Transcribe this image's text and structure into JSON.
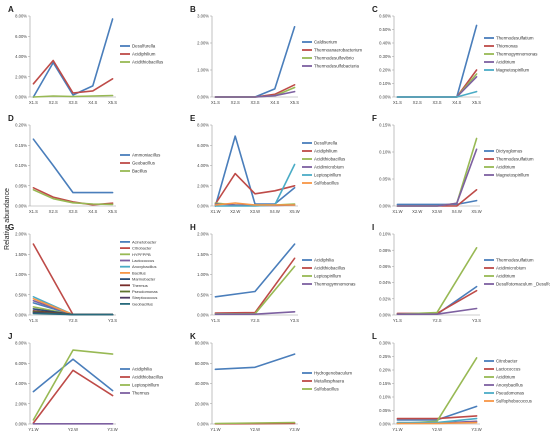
{
  "figure": {
    "ylabel": "Relative abundance"
  },
  "chart_data": [
    {
      "id": "A",
      "type": "line",
      "x": [
        "X1.S",
        "X2.S",
        "X3.S",
        "X4.S",
        "X5.S"
      ],
      "ylim": [
        0,
        8
      ],
      "yticks": [
        "0.00%",
        "2.00%",
        "4.00%",
        "6.00%",
        "8.00%"
      ],
      "series": [
        {
          "name": "Desulfurella",
          "color": "#4a7ebb",
          "values": [
            0.0,
            3.4,
            0.2,
            1.1,
            7.7
          ]
        },
        {
          "name": "Acidiphilium",
          "color": "#be4b48",
          "values": [
            1.3,
            3.6,
            0.4,
            0.6,
            1.8
          ]
        },
        {
          "name": "Acidithiobacillus",
          "color": "#98b954",
          "values": [
            0.0,
            0.1,
            0.05,
            0.1,
            0.15
          ]
        }
      ]
    },
    {
      "id": "B",
      "type": "line",
      "x": [
        "X1.S",
        "X2.S",
        "X3.S",
        "X4.S",
        "X5.S"
      ],
      "ylim": [
        0,
        3
      ],
      "yticks": [
        "0.00%",
        "1.00%",
        "2.00%",
        "3.00%"
      ],
      "series": [
        {
          "name": "Caldiserium",
          "color": "#4a7ebb",
          "values": [
            0,
            0,
            0,
            0.3,
            2.6
          ]
        },
        {
          "name": "Thermoanaerobacterium",
          "color": "#be4b48",
          "values": [
            0,
            0,
            0,
            0.1,
            0.45
          ]
        },
        {
          "name": "Thermodesulfovibrio",
          "color": "#98b954",
          "values": [
            0,
            0,
            0,
            0.05,
            0.35
          ]
        },
        {
          "name": "Thermodesulfobacteria",
          "color": "#7d60a0",
          "values": [
            0,
            0,
            0,
            0.05,
            0.2
          ]
        }
      ]
    },
    {
      "id": "C",
      "type": "line",
      "x": [
        "X1.S",
        "X2.S",
        "X3.S",
        "X4.S",
        "X5.S"
      ],
      "ylim": [
        0,
        0.6
      ],
      "yticks": [
        "0.00%",
        "0.10%",
        "0.20%",
        "0.30%",
        "0.40%",
        "0.50%",
        "0.60%"
      ],
      "series": [
        {
          "name": "Thermodesulfatium",
          "color": "#4a7ebb",
          "values": [
            0,
            0,
            0,
            0,
            0.53
          ]
        },
        {
          "name": "Thiomonas",
          "color": "#be4b48",
          "values": [
            0,
            0,
            0,
            0,
            0.2
          ]
        },
        {
          "name": "Thermogymnomonas",
          "color": "#98b954",
          "values": [
            0,
            0,
            0,
            0,
            0.17
          ]
        },
        {
          "name": "Aciditrium",
          "color": "#7d60a0",
          "values": [
            0,
            0,
            0,
            0,
            0.15
          ]
        },
        {
          "name": "Magnetospirillum",
          "color": "#4bacc6",
          "values": [
            0,
            0,
            0,
            0,
            0.04
          ]
        }
      ]
    },
    {
      "id": "D",
      "type": "line",
      "x": [
        "X1.S",
        "X2.S",
        "X3.S",
        "X4.S",
        "X5.S"
      ],
      "ylim": [
        0,
        0.2
      ],
      "yticks": [
        "0.00%",
        "0.05%",
        "0.10%",
        "0.15%",
        "0.20%"
      ],
      "series": [
        {
          "name": "Ammoniacillus",
          "color": "#4a7ebb",
          "values": [
            0.165,
            0.1,
            0.033,
            0.033,
            0.033
          ]
        },
        {
          "name": "Geobacillus",
          "color": "#be4b48",
          "values": [
            0.045,
            0.022,
            0.01,
            0.003,
            0.007
          ]
        },
        {
          "name": "Bacillus",
          "color": "#98b954",
          "values": [
            0.04,
            0.018,
            0.008,
            0.005,
            0.004
          ]
        }
      ]
    },
    {
      "id": "E",
      "type": "line",
      "x": [
        "X1.W",
        "X2.W",
        "X3.W",
        "X4.W",
        "X5.W"
      ],
      "ylim": [
        0,
        8
      ],
      "yticks": [
        "0.00%",
        "2.00%",
        "4.00%",
        "6.00%",
        "8.00%"
      ],
      "series": [
        {
          "name": "Desulfurella",
          "color": "#4a7ebb",
          "values": [
            0.0,
            6.9,
            0.2,
            0.2,
            1.8
          ]
        },
        {
          "name": "Acidiphilium",
          "color": "#be4b48",
          "values": [
            0.2,
            3.2,
            1.2,
            1.5,
            2.0
          ]
        },
        {
          "name": "Acidithiobacillus",
          "color": "#98b954",
          "values": [
            0.3,
            0.1,
            0.1,
            0.1,
            0.2
          ]
        },
        {
          "name": "Acidimicrobium",
          "color": "#7d60a0",
          "values": [
            0.2,
            0.1,
            0.05,
            0.05,
            0.1
          ]
        },
        {
          "name": "Leptospirillum",
          "color": "#4bacc6",
          "values": [
            0,
            0,
            0,
            0.1,
            4.1
          ]
        },
        {
          "name": "Sulfobacillus",
          "color": "#f79646",
          "values": [
            0.1,
            0.3,
            0.1,
            0.1,
            0.1
          ]
        }
      ]
    },
    {
      "id": "F",
      "type": "line",
      "x": [
        "X1.W",
        "X2.W",
        "X3.W",
        "X4.W",
        "X5.W"
      ],
      "ylim": [
        0,
        0.15
      ],
      "yticks": [
        "0.00%",
        "0.05%",
        "0.10%",
        "0.15%"
      ],
      "series": [
        {
          "name": "Dictyoglomus",
          "color": "#4a7ebb",
          "values": [
            0.003,
            0.003,
            0.003,
            0.003,
            0.01
          ]
        },
        {
          "name": "Thermodesulfatium",
          "color": "#be4b48",
          "values": [
            0,
            0,
            0,
            0,
            0.03
          ]
        },
        {
          "name": "Aciditrium",
          "color": "#98b954",
          "values": [
            0,
            0,
            0,
            0.005,
            0.125
          ]
        },
        {
          "name": "Magnetospirillum",
          "color": "#7d60a0",
          "values": [
            0,
            0,
            0,
            0.005,
            0.105
          ]
        }
      ]
    },
    {
      "id": "G",
      "type": "line",
      "x": [
        "Y1.S",
        "Y2.S",
        "Y3.S"
      ],
      "ylim": [
        0,
        2
      ],
      "yticks": [
        "0.00%",
        "0.50%",
        "1.00%",
        "1.50%",
        "2.00%"
      ],
      "series": [
        {
          "name": "Acinetobacter",
          "color": "#4a7ebb",
          "values": [
            0.3,
            0.01,
            0.01
          ]
        },
        {
          "name": "Citrobacter",
          "color": "#be4b48",
          "values": [
            1.75,
            0.01,
            0.01
          ]
        },
        {
          "name": "HYPFPPB",
          "color": "#98b954",
          "values": [
            0.2,
            0.01,
            0.01
          ]
        },
        {
          "name": "Lactococcus",
          "color": "#7d60a0",
          "values": [
            0.35,
            0.01,
            0.01
          ]
        },
        {
          "name": "Anoxybacillus",
          "color": "#4bacc6",
          "values": [
            0.45,
            0.01,
            0.01
          ]
        },
        {
          "name": "Bacillus",
          "color": "#f79646",
          "values": [
            0.4,
            0.01,
            0.01
          ]
        },
        {
          "name": "Marinobacter",
          "color": "#2c4d75",
          "values": [
            0.15,
            0.01,
            0.01
          ]
        },
        {
          "name": "Thermus",
          "color": "#772c2a",
          "values": [
            0.1,
            0.01,
            0.01
          ]
        },
        {
          "name": "Pseudomonas",
          "color": "#5f7530",
          "values": [
            0.08,
            0.01,
            0.01
          ]
        },
        {
          "name": "Streptococcus",
          "color": "#4d3b62",
          "values": [
            0.06,
            0.01,
            0.01
          ]
        },
        {
          "name": "Geobacillus",
          "color": "#276a7c",
          "values": [
            0.04,
            0.01,
            0.01
          ]
        }
      ]
    },
    {
      "id": "H",
      "type": "line",
      "x": [
        "Y1.S",
        "Y2.S",
        "Y3.S"
      ],
      "ylim": [
        0,
        2
      ],
      "yticks": [
        "0.00%",
        "0.50%",
        "1.00%",
        "1.50%",
        "2.00%"
      ],
      "series": [
        {
          "name": "Acidiphilia",
          "color": "#4a7ebb",
          "values": [
            0.45,
            0.58,
            1.75
          ]
        },
        {
          "name": "Acidithiobacillus",
          "color": "#be4b48",
          "values": [
            0.05,
            0.06,
            1.4
          ]
        },
        {
          "name": "Leptospirillum",
          "color": "#98b954",
          "values": [
            0.03,
            0.03,
            1.2
          ]
        },
        {
          "name": "Thermogymnomonas",
          "color": "#7d60a0",
          "values": [
            0.02,
            0.02,
            0.08
          ]
        }
      ]
    },
    {
      "id": "I",
      "type": "line",
      "x": [
        "Y1.S",
        "Y2.S",
        "Y3.S"
      ],
      "ylim": [
        0,
        0.1
      ],
      "yticks": [
        "0.00%",
        "0.02%",
        "0.04%",
        "0.06%",
        "0.08%",
        "0.10%"
      ],
      "series": [
        {
          "name": "Thermodesulfatium",
          "color": "#4a7ebb",
          "values": [
            0.001,
            0.001,
            0.035
          ]
        },
        {
          "name": "Acidimicrobium",
          "color": "#be4b48",
          "values": [
            0.002,
            0.002,
            0.03
          ]
        },
        {
          "name": "Aciditrium",
          "color": "#98b954",
          "values": [
            0.001,
            0.003,
            0.083
          ]
        },
        {
          "name": "Desulfotomaculum _Desulfovirgula",
          "color": "#7d60a0",
          "values": [
            0.001,
            0.001,
            0.008
          ]
        }
      ]
    },
    {
      "id": "J",
      "type": "line",
      "x": [
        "Y1.W",
        "Y2.W",
        "Y3.W"
      ],
      "ylim": [
        0,
        8
      ],
      "yticks": [
        "0.00%",
        "2.00%",
        "4.00%",
        "6.00%",
        "8.00%"
      ],
      "series": [
        {
          "name": "Acidiphilia",
          "color": "#4a7ebb",
          "values": [
            3.2,
            6.4,
            3.3
          ]
        },
        {
          "name": "Acidithiobacillus",
          "color": "#be4b48",
          "values": [
            0.1,
            5.3,
            2.8
          ]
        },
        {
          "name": "Leptospirillum",
          "color": "#98b954",
          "values": [
            0.4,
            7.3,
            6.9
          ]
        },
        {
          "name": "Thermus",
          "color": "#7d60a0",
          "values": [
            0.02,
            0.02,
            0.02
          ]
        }
      ]
    },
    {
      "id": "K",
      "type": "line",
      "x": [
        "Y1.W",
        "Y2.W",
        "Y3.W"
      ],
      "ylim": [
        0,
        80
      ],
      "yticks": [
        "0.00%",
        "20.00%",
        "40.00%",
        "60.00%",
        "80.00%"
      ],
      "series": [
        {
          "name": "Hydrogenobaculum",
          "color": "#4a7ebb",
          "values": [
            54,
            56,
            69
          ]
        },
        {
          "name": "Metallosphaera",
          "color": "#be4b48",
          "values": [
            0.2,
            0.3,
            0.5
          ]
        },
        {
          "name": "Sulfobacillus",
          "color": "#98b954",
          "values": [
            0.5,
            1.0,
            1.5
          ]
        }
      ]
    },
    {
      "id": "L",
      "type": "line",
      "x": [
        "Y1.W",
        "Y2.W",
        "Y3.W"
      ],
      "ylim": [
        0,
        0.3
      ],
      "yticks": [
        "0.00%",
        "0.05%",
        "0.10%",
        "0.15%",
        "0.20%",
        "0.25%",
        "0.30%"
      ],
      "series": [
        {
          "name": "Citrobacter",
          "color": "#4a7ebb",
          "values": [
            0.015,
            0.015,
            0.065
          ]
        },
        {
          "name": "Lactococcus",
          "color": "#be4b48",
          "values": [
            0.02,
            0.02,
            0.03
          ]
        },
        {
          "name": "Aciditrium",
          "color": "#98b954",
          "values": [
            0.002,
            0.01,
            0.245
          ]
        },
        {
          "name": "Anoxybacillus",
          "color": "#7d60a0",
          "values": [
            0.003,
            0.003,
            0.01
          ]
        },
        {
          "name": "Pseudomonas",
          "color": "#4bacc6",
          "values": [
            0.005,
            0.005,
            0.02
          ]
        },
        {
          "name": "Sulfophobococcus",
          "color": "#f79646",
          "values": [
            0.002,
            0.002,
            0.005
          ]
        }
      ]
    }
  ]
}
